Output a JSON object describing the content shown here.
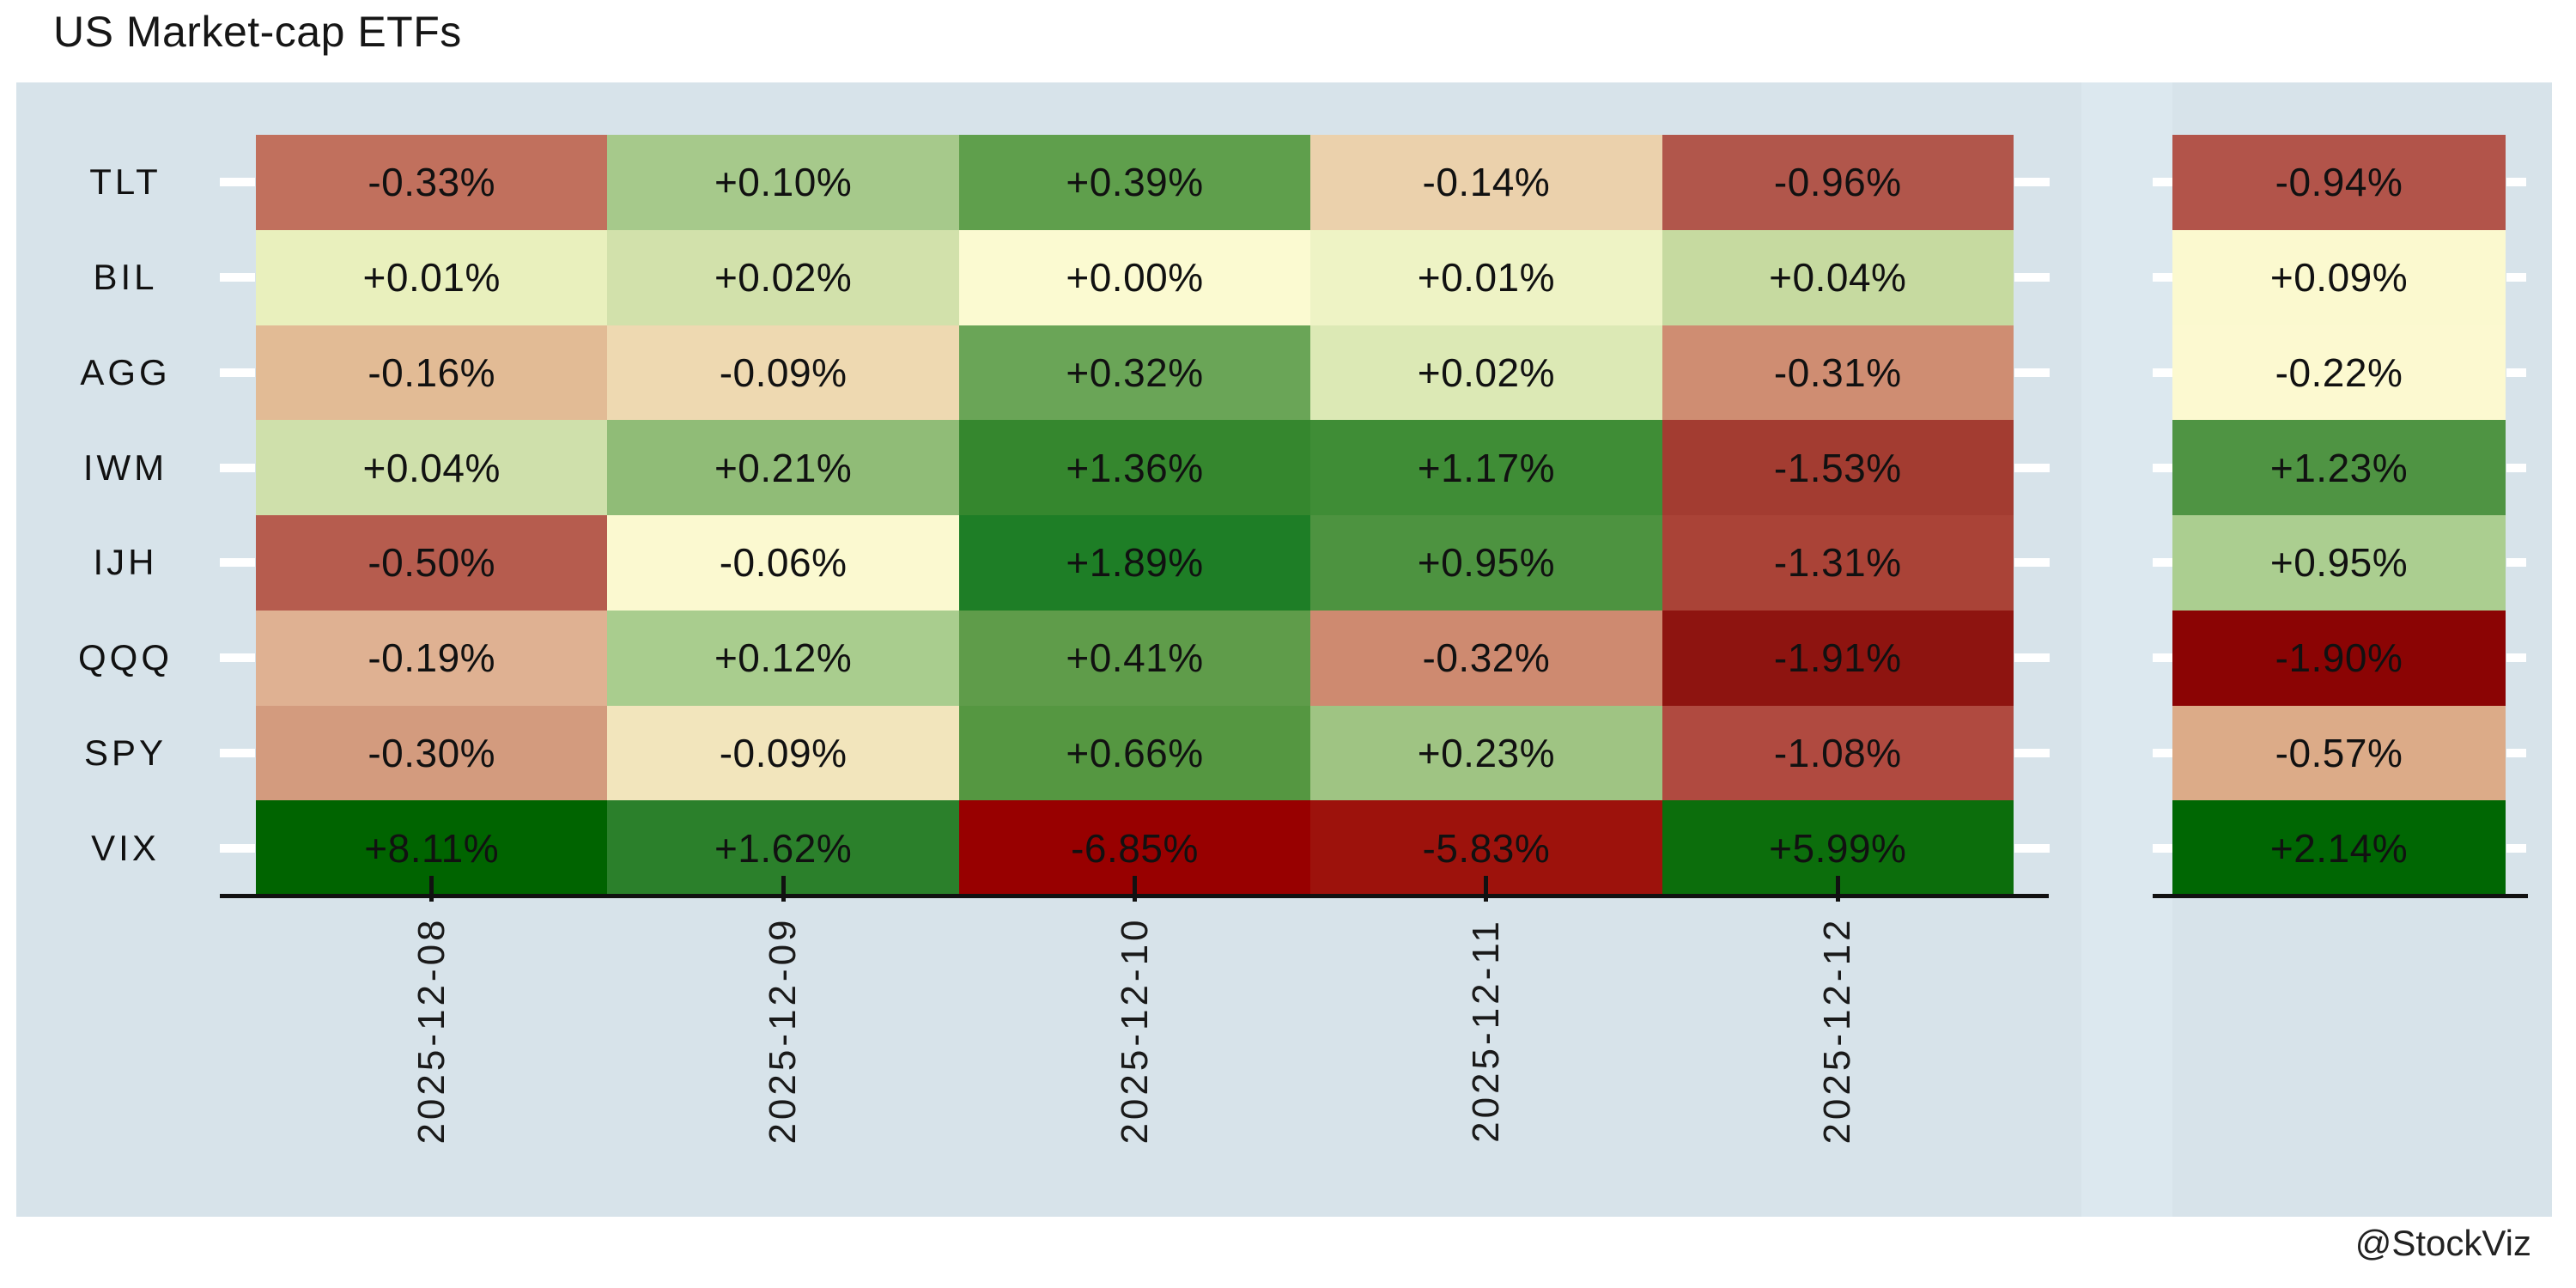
{
  "title": "US Market-cap ETFs",
  "watermark": "@StockViz",
  "colors": {
    "panel_bg": "#d7e3ea",
    "panel_gap": "#dce8ef",
    "axis_line": "#111111",
    "tick_white": "#ffffff",
    "cell_text": "#111111",
    "title_text": "#161616",
    "watermark_text": "#222222"
  },
  "chart_data": {
    "type": "heatmap",
    "title": "US Market-cap ETFs",
    "x_categories": [
      "2025-12-08",
      "2025-12-09",
      "2025-12-10",
      "2025-12-11",
      "2025-12-12"
    ],
    "y_categories": [
      "TLT",
      "BIL",
      "AGG",
      "IWM",
      "IJH",
      "QQQ",
      "SPY",
      "VIX"
    ],
    "legend": "none",
    "grid": "off",
    "series": [
      {
        "name": "TLT",
        "values": [
          -0.33,
          0.1,
          0.39,
          -0.14,
          -0.96
        ],
        "labels": [
          "-0.33%",
          "+0.10%",
          "+0.39%",
          "-0.14%",
          "-0.96%"
        ],
        "cell_colors": [
          "#c1705d",
          "#a6c98b",
          "#5f9f4c",
          "#ebd1ac",
          "#b1564b"
        ],
        "summary": {
          "value": -0.94,
          "label": "-0.94%",
          "color": "#b2544a"
        }
      },
      {
        "name": "BIL",
        "values": [
          0.01,
          0.02,
          0.0,
          0.01,
          0.04
        ],
        "labels": [
          "+0.01%",
          "+0.02%",
          "+0.00%",
          "+0.01%",
          "+0.04%"
        ],
        "cell_colors": [
          "#e9f0bd",
          "#d2e1ab",
          "#fbfad1",
          "#eef3c5",
          "#c6daa0"
        ],
        "summary": {
          "value": 0.09,
          "label": "+0.09%",
          "color": "#fbf9cf"
        }
      },
      {
        "name": "AGG",
        "values": [
          -0.16,
          -0.09,
          0.32,
          0.02,
          -0.31
        ],
        "labels": [
          "-0.16%",
          "-0.09%",
          "+0.32%",
          "+0.02%",
          "-0.31%"
        ],
        "cell_colors": [
          "#e2bb95",
          "#eed9b1",
          "#6aa557",
          "#dce9b5",
          "#cf8d72"
        ],
        "summary": {
          "value": -0.22,
          "label": "-0.22%",
          "color": "#fcf9d0"
        }
      },
      {
        "name": "IWM",
        "values": [
          0.04,
          0.21,
          1.36,
          1.17,
          -1.53
        ],
        "labels": [
          "+0.04%",
          "+0.21%",
          "+1.36%",
          "+1.17%",
          "-1.53%"
        ],
        "cell_colors": [
          "#cfe0ab",
          "#90bc77",
          "#35872e",
          "#3f8d36",
          "#a33c31"
        ],
        "summary": {
          "value": 1.23,
          "label": "+1.23%",
          "color": "#4f9443"
        }
      },
      {
        "name": "IJH",
        "values": [
          -0.5,
          -0.06,
          1.89,
          0.95,
          -1.31
        ],
        "labels": [
          "-0.50%",
          "-0.06%",
          "+1.89%",
          "+0.95%",
          "-1.31%"
        ],
        "cell_colors": [
          "#b65c4e",
          "#fbf9d0",
          "#1e7e26",
          "#4d9340",
          "#aa4337"
        ],
        "summary": {
          "value": 0.95,
          "label": "+0.95%",
          "color": "#abce90"
        }
      },
      {
        "name": "QQQ",
        "values": [
          -0.19,
          0.12,
          0.41,
          -0.32,
          -1.91
        ],
        "labels": [
          "-0.19%",
          "+0.12%",
          "+0.41%",
          "-0.32%",
          "-1.91%"
        ],
        "cell_colors": [
          "#dfb192",
          "#a9cd8e",
          "#5f9c4a",
          "#ce8a70",
          "#8e1410"
        ],
        "summary": {
          "value": -1.9,
          "label": "-1.90%",
          "color": "#8b0404"
        }
      },
      {
        "name": "SPY",
        "values": [
          -0.3,
          -0.09,
          0.66,
          0.23,
          -1.08
        ],
        "labels": [
          "-0.30%",
          "-0.09%",
          "+0.66%",
          "+0.23%",
          "-1.08%"
        ],
        "cell_colors": [
          "#d39b7e",
          "#f2e5bc",
          "#559741",
          "#9fc483",
          "#b04a40"
        ],
        "summary": {
          "value": -0.57,
          "label": "-0.57%",
          "color": "#dcab88"
        }
      },
      {
        "name": "VIX",
        "values": [
          8.11,
          1.62,
          -6.85,
          -5.83,
          5.99
        ],
        "labels": [
          "+8.11%",
          "+1.62%",
          "-6.85%",
          "-5.83%",
          "+5.99%"
        ],
        "cell_colors": [
          "#006400",
          "#2b802b",
          "#980000",
          "#9d120c",
          "#0c6e0c"
        ],
        "summary": {
          "value": 2.14,
          "label": "+2.14%",
          "color": "#006703"
        }
      }
    ]
  }
}
